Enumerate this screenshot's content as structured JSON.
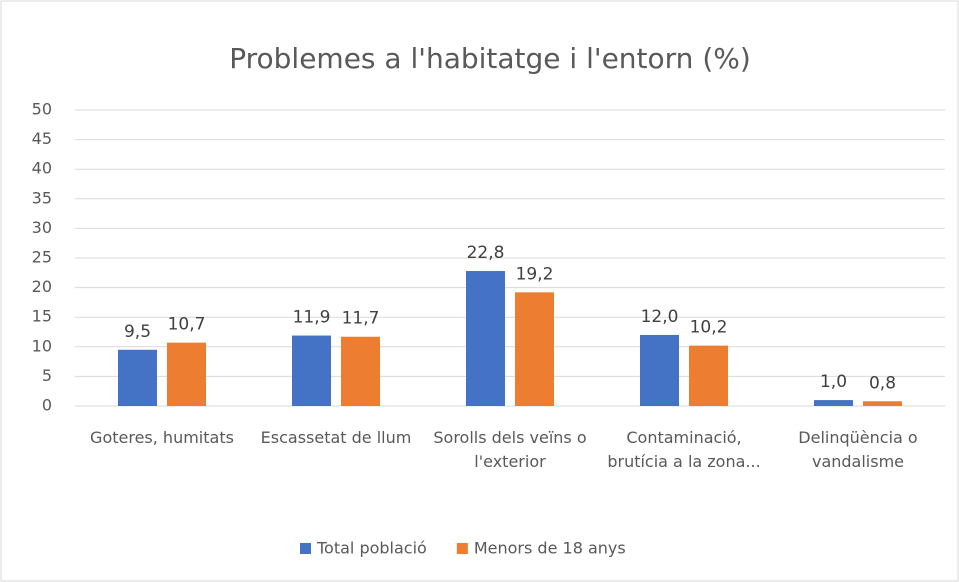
{
  "chart_data": {
    "type": "bar",
    "title": "Problemes a l'habitatge i l'entorn (%)",
    "categories": [
      "Goteres, humitats",
      "Escassetat de llum",
      "Sorolls dels veïns o l'exterior",
      "Contaminació, brutícia a la zona...",
      "Delinqüència o vandalisme"
    ],
    "series": [
      {
        "name": "Total població",
        "color": "#4472c4",
        "values": [
          9.5,
          11.9,
          22.8,
          12.0,
          1.0
        ],
        "value_labels": [
          "9,5",
          "11,9",
          "22,8",
          "12,0",
          "1,0"
        ]
      },
      {
        "name": "Menors de 18 anys",
        "color": "#ed7d31",
        "values": [
          10.7,
          11.7,
          19.2,
          10.2,
          0.8
        ],
        "value_labels": [
          "10,7",
          "11,7",
          "19,2",
          "10,2",
          "0,8"
        ]
      }
    ],
    "ylim": [
      0,
      50
    ],
    "yticks": [
      0,
      5,
      10,
      15,
      20,
      25,
      30,
      35,
      40,
      45,
      50
    ],
    "grid": true,
    "legend": "bottom"
  }
}
